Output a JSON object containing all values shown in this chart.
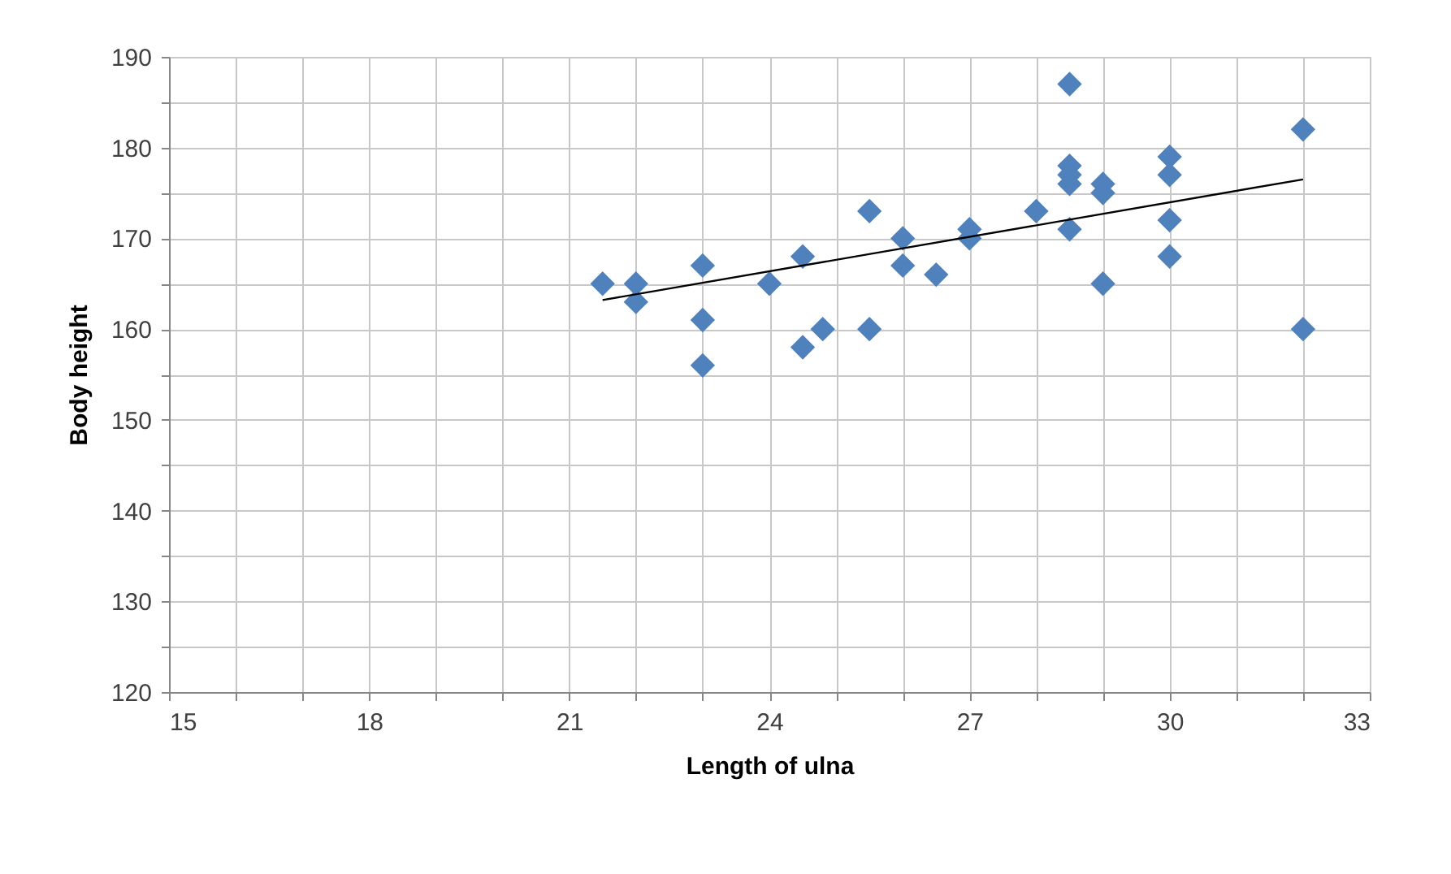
{
  "chart_data": {
    "type": "scatter",
    "xlabel": "Length of ulna",
    "ylabel": "Body height",
    "xlim": [
      15,
      33
    ],
    "ylim": [
      120,
      190
    ],
    "xticks": [
      15,
      {
        "value": 16,
        "label": null
      },
      {
        "value": 17,
        "label": null
      },
      18,
      {
        "value": 19,
        "label": null
      },
      {
        "value": 20,
        "label": null
      },
      21,
      {
        "value": 22,
        "label": null
      },
      {
        "value": 23,
        "label": null
      },
      24,
      {
        "value": 25,
        "label": null
      },
      {
        "value": 26,
        "label": null
      },
      27,
      {
        "value": 28,
        "label": null
      },
      {
        "value": 29,
        "label": null
      },
      30,
      {
        "value": 31,
        "label": null
      },
      {
        "value": 32,
        "label": null
      },
      33
    ],
    "yticks": [
      120,
      {
        "value": 125,
        "label": null
      },
      130,
      {
        "value": 135,
        "label": null
      },
      140,
      {
        "value": 145,
        "label": null
      },
      150,
      {
        "value": 155,
        "label": null
      },
      160,
      {
        "value": 165,
        "label": null
      },
      170,
      {
        "value": 175,
        "label": null
      },
      180,
      {
        "value": 185,
        "label": null
      },
      190
    ],
    "grid": true,
    "series": [
      {
        "type": "scatter",
        "marker": "diamond",
        "color": "#4f81bd",
        "x": [
          21.5,
          22,
          22,
          23,
          23,
          23,
          24,
          24.5,
          24.5,
          24.8,
          25.5,
          25.5,
          26,
          26,
          26.5,
          27,
          27,
          28,
          28.5,
          28.5,
          28.5,
          28.5,
          28.5,
          29,
          29,
          29,
          30,
          30,
          30,
          30,
          32,
          32
        ],
        "values": [
          165,
          165,
          163,
          167,
          161,
          156,
          165,
          168,
          158,
          160,
          173,
          160,
          170,
          167,
          166,
          171,
          170,
          173,
          187,
          178,
          177,
          176,
          171,
          176,
          175,
          165,
          179,
          177,
          172,
          168,
          182,
          160
        ]
      },
      {
        "type": "line",
        "marker": "none",
        "line_style": "solid",
        "color": "#000000",
        "x": [
          21.5,
          32
        ],
        "values": [
          163.2,
          176.5
        ]
      }
    ]
  }
}
